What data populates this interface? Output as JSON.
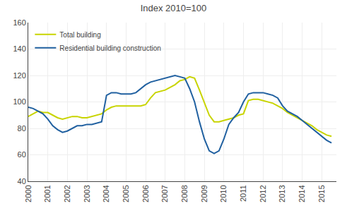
{
  "chart_data": {
    "type": "line",
    "title": "Index 2010=100",
    "x": [
      2000.0,
      2000.25,
      2000.5,
      2000.75,
      2001.0,
      2001.25,
      2001.5,
      2001.75,
      2002.0,
      2002.25,
      2002.5,
      2002.75,
      2003.0,
      2003.25,
      2003.5,
      2003.75,
      2004.0,
      2004.25,
      2004.5,
      2004.75,
      2005.0,
      2005.25,
      2005.5,
      2005.75,
      2006.0,
      2006.25,
      2006.5,
      2006.75,
      2007.0,
      2007.25,
      2007.5,
      2007.75,
      2008.0,
      2008.25,
      2008.5,
      2008.75,
      2009.0,
      2009.25,
      2009.5,
      2009.75,
      2010.0,
      2010.25,
      2010.5,
      2010.75,
      2011.0,
      2011.25,
      2011.5,
      2011.75,
      2012.0,
      2012.25,
      2012.5,
      2012.75,
      2013.0,
      2013.25,
      2013.5,
      2013.75,
      2014.0,
      2014.25,
      2014.5,
      2014.75,
      2015.0,
      2015.25,
      2015.5
    ],
    "series": [
      {
        "name": "Total building",
        "color": "#c8d400",
        "values": [
          89,
          91,
          93,
          92,
          92,
          90,
          88,
          87,
          88,
          89,
          89,
          88,
          88,
          89,
          90,
          91,
          94,
          96,
          97,
          97,
          97,
          97,
          97,
          97,
          98,
          103,
          107,
          108,
          109,
          111,
          113,
          116,
          117,
          119,
          118,
          109,
          99,
          90,
          85,
          85,
          86,
          87,
          88,
          90,
          91,
          101,
          102,
          102,
          101,
          100,
          99,
          97,
          95,
          92,
          90,
          88,
          86,
          84,
          82,
          79,
          77,
          75,
          74
        ]
      },
      {
        "name": "Residential building construction",
        "color": "#2060a0",
        "values": [
          96,
          95,
          93,
          91,
          87,
          82,
          79,
          77,
          78,
          80,
          82,
          82,
          83,
          83,
          84,
          85,
          105,
          107,
          107,
          106,
          106,
          106,
          107,
          110,
          113,
          115,
          116,
          117,
          118,
          119,
          120,
          119,
          118,
          110,
          100,
          85,
          72,
          63,
          61,
          63,
          72,
          83,
          88,
          92,
          100,
          106,
          107,
          107,
          107,
          106,
          105,
          103,
          97,
          93,
          91,
          89,
          86,
          83,
          80,
          77,
          74,
          71,
          69
        ]
      }
    ],
    "xlim": [
      2000.0,
      2015.75
    ],
    "xticks": [
      2000,
      2001,
      2002,
      2003,
      2004,
      2005,
      2006,
      2007,
      2008,
      2009,
      2010,
      2011,
      2012,
      2013,
      2014,
      2015
    ],
    "ylim": [
      40,
      160
    ],
    "yticks": [
      40,
      60,
      80,
      100,
      120,
      140,
      160
    ],
    "grid": true,
    "legend": "upper left"
  }
}
